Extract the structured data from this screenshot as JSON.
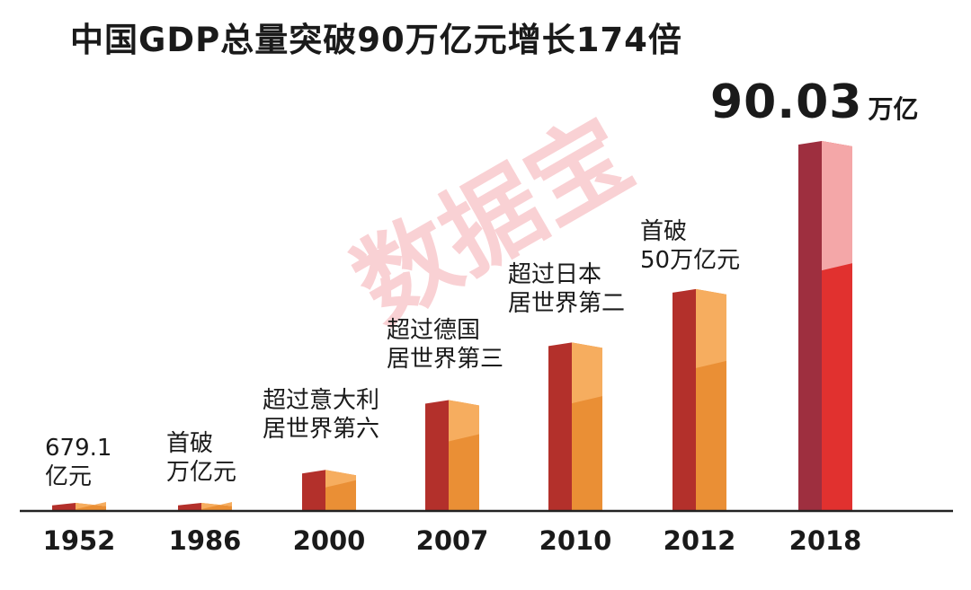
{
  "title": "中国GDP总量突破90万亿元增长174倍",
  "highlight": {
    "value": "90.03",
    "unit": "万亿"
  },
  "watermark": "数据宝",
  "colors": {
    "left_face": "#b3302b",
    "right_face_top": "#f6ad5f",
    "right_face": "#ea8f35",
    "latest_left_face": "#9e2f3f",
    "latest_right_face_top": "#f4a7a8",
    "latest_right_face": "#e1312f",
    "axis": "#222222"
  },
  "chart_data": {
    "type": "bar",
    "title": "中国GDP总量突破90万亿元增长174倍",
    "categories": [
      "1952",
      "1986",
      "2000",
      "2007",
      "2010",
      "2012",
      "2018"
    ],
    "values": [
      0.068,
      1.03,
      10,
      27,
      41,
      54,
      90.03
    ],
    "unit": "万亿元",
    "grid": false,
    "annotations": [
      [
        "679.1",
        "亿元"
      ],
      [
        "首破",
        "万亿元"
      ],
      [
        "超过意大利",
        "居世界第六"
      ],
      [
        "超过德国",
        "居世界第三"
      ],
      [
        "超过日本",
        "居世界第二"
      ],
      [
        "首破",
        "50万亿元"
      ],
      []
    ]
  }
}
